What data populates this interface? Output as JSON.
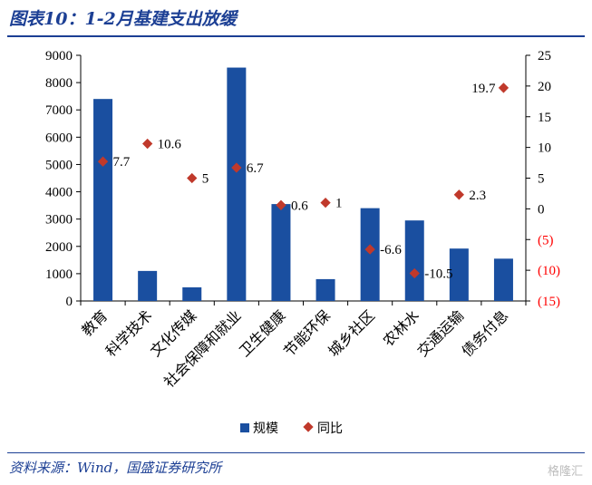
{
  "header": {
    "title": "图表10：1-2月基建支出放缓"
  },
  "footer": {
    "source": "资料来源：Wind，国盛证券研究所",
    "watermark": "格隆汇"
  },
  "colors": {
    "bar": "#1a4fa0",
    "marker": "#c0392b",
    "axis": "#000000",
    "negative": "#ff0000"
  },
  "chart_data": {
    "type": "bar",
    "categories": [
      "教育",
      "科学技术",
      "文化传媒",
      "社会保障和就业",
      "卫生健康",
      "节能环保",
      "城乡社区",
      "农林水",
      "交通运输",
      "债务付息"
    ],
    "series": [
      {
        "name": "规模",
        "type": "bar",
        "axis": "left",
        "values": [
          7400,
          1100,
          500,
          8550,
          3550,
          800,
          3400,
          2950,
          1920,
          1550
        ]
      },
      {
        "name": "同比",
        "type": "scatter",
        "axis": "right",
        "values": [
          7.7,
          10.6,
          5,
          6.7,
          0.6,
          1,
          -6.6,
          -10.5,
          2.3,
          19.7
        ]
      }
    ],
    "point_labels": [
      "7.7",
      "10.6",
      "5",
      "6.7",
      "0.6",
      "1",
      "-6.6",
      "-10.5",
      "2.3",
      "19.7"
    ],
    "y_left": {
      "lim": [
        0,
        9000
      ],
      "ticks": [
        "0",
        "1000",
        "2000",
        "3000",
        "4000",
        "5000",
        "6000",
        "7000",
        "8000",
        "9000"
      ]
    },
    "y_right": {
      "lim": [
        -15,
        25
      ],
      "ticks": [
        "(15)",
        "(10)",
        "(5)",
        "0",
        "5",
        "10",
        "15",
        "20",
        "25"
      ]
    },
    "legend_position": "bottom-center",
    "grid": false
  }
}
